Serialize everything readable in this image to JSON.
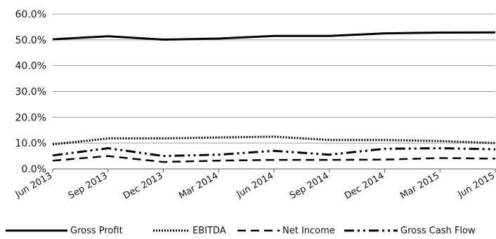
{
  "chart_data": {
    "type": "line",
    "categories": [
      "Jun 2013",
      "Sep 2013",
      "Dec 2013",
      "Mar 2014",
      "Jun 2014",
      "Sep 2014",
      "Dec 2014",
      "Mar 2015",
      "Jun 2015"
    ],
    "series": [
      {
        "name": "Gross Profit",
        "values": [
          50.2,
          51.4,
          50.1,
          50.5,
          51.5,
          51.5,
          52.5,
          52.8,
          52.9
        ],
        "style": "solid",
        "color": "#000000"
      },
      {
        "name": "EBITDA",
        "values": [
          9.5,
          11.8,
          11.8,
          12.2,
          12.5,
          11.2,
          11.2,
          10.8,
          10.0
        ],
        "style": "dotted",
        "color": "#000000"
      },
      {
        "name": "Net Income",
        "values": [
          3.2,
          5.0,
          2.7,
          3.2,
          3.5,
          3.5,
          3.6,
          4.2,
          4.0
        ],
        "style": "dashed",
        "color": "#000000"
      },
      {
        "name": "Gross Cash Flow",
        "values": [
          5.2,
          8.0,
          5.0,
          5.5,
          7.0,
          5.5,
          7.8,
          8.0,
          7.6
        ],
        "style": "dashdot",
        "color": "#000000"
      }
    ],
    "y_ticks": [
      "0.0%",
      "10.0%",
      "20.0%",
      "30.0%",
      "40.0%",
      "50.0%",
      "60.0%"
    ],
    "ylim": [
      0,
      60
    ],
    "grid": true,
    "legend_position": "bottom",
    "title": "",
    "xlabel": "",
    "ylabel": ""
  }
}
